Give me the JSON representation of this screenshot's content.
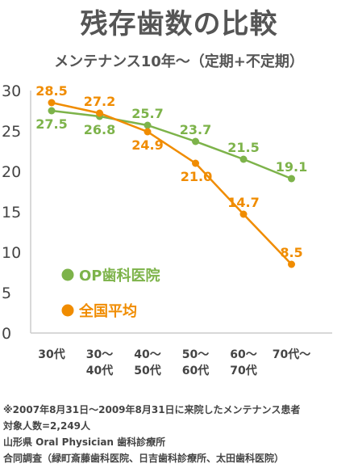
{
  "chart_data": {
    "type": "line",
    "title": "残存歯数の比較",
    "subtitle": "メンテナンス10年～（定期+不定期）",
    "categories": [
      "30代",
      "30～\n40代",
      "40～\n50代",
      "50～\n60代",
      "60～\n70代",
      "70代～"
    ],
    "yticks": [
      0,
      5,
      10,
      15,
      20,
      25,
      30
    ],
    "ylim": [
      0,
      30
    ],
    "grid": false,
    "legend_position": "left-bottom inside plot",
    "series": [
      {
        "name": "OP歯科医院",
        "color": "#7db34a",
        "values": [
          27.5,
          26.8,
          25.7,
          23.7,
          21.5,
          19.1
        ],
        "labels": [
          "27.5",
          "26.8",
          "25.7",
          "23.7",
          "21.5",
          "19.1"
        ]
      },
      {
        "name": "全国平均",
        "color": "#f08c00",
        "values": [
          28.5,
          27.2,
          24.9,
          21.0,
          14.7,
          8.5
        ],
        "labels": [
          "28.5",
          "27.2",
          "24.9",
          "21.0",
          "14.7",
          "8.5"
        ]
      }
    ]
  },
  "notes": [
    "※2007年8月31日～2009年8月31日に来院したメンテナンス患者",
    "対象人数=2,249人",
    "山形県 Oral Physician 歯科診療所",
    "合同調査（緑町斎藤歯科医院、日吉歯科診療所、太田歯科医院）"
  ]
}
